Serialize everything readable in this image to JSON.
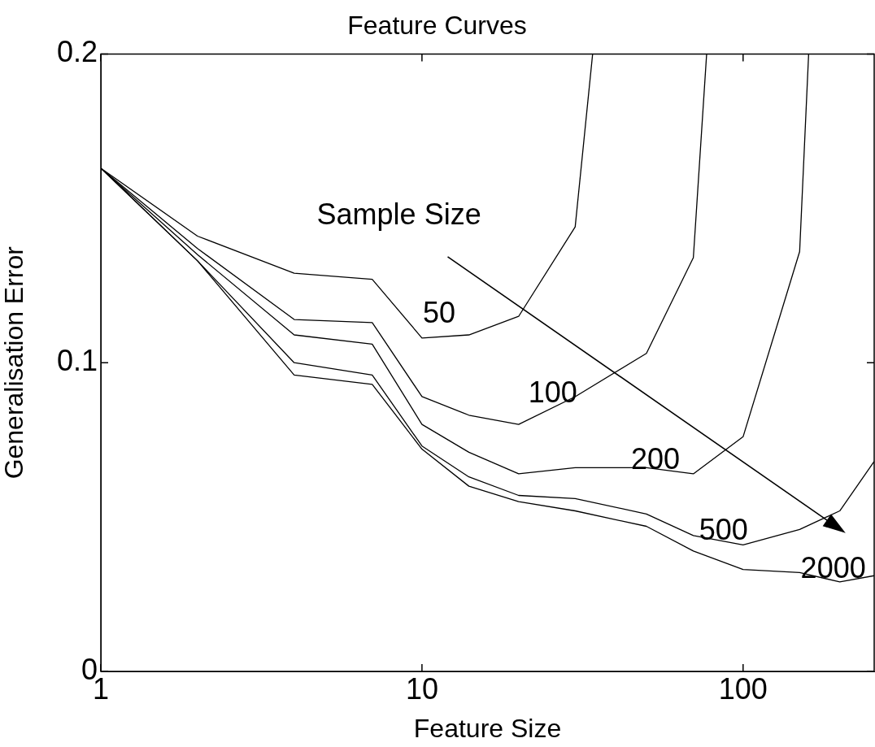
{
  "chart_data": {
    "type": "line",
    "title": "Feature Curves",
    "xlabel": "Feature Size",
    "ylabel": "Generalisation Error",
    "log": "x",
    "grid": false,
    "legend": false,
    "marker": "none",
    "line_style": "solid",
    "xlim": [
      1,
      256
    ],
    "xticks": [
      1,
      10,
      100
    ],
    "ylim": [
      0,
      0.2
    ],
    "yticks": [
      0,
      0.1,
      0.2
    ],
    "annotations": [
      "Sample Size"
    ],
    "series": [
      {
        "name": "50",
        "color": "#000000",
        "x": [
          1,
          2,
          4,
          7,
          10,
          14,
          20,
          30,
          34
        ],
        "values": [
          0.163,
          0.141,
          0.129,
          0.127,
          0.108,
          0.109,
          0.115,
          0.144,
          0.2
        ]
      },
      {
        "name": "100",
        "color": "#000000",
        "x": [
          1,
          2,
          4,
          7,
          10,
          14,
          20,
          30,
          50,
          70,
          77
        ],
        "values": [
          0.163,
          0.137,
          0.114,
          0.113,
          0.089,
          0.083,
          0.08,
          0.089,
          0.103,
          0.134,
          0.2
        ]
      },
      {
        "name": "200",
        "color": "#000000",
        "x": [
          1,
          2,
          4,
          7,
          10,
          14,
          20,
          30,
          50,
          70,
          100,
          150,
          160
        ],
        "values": [
          0.163,
          0.135,
          0.109,
          0.106,
          0.08,
          0.071,
          0.064,
          0.066,
          0.066,
          0.064,
          0.076,
          0.136,
          0.2
        ]
      },
      {
        "name": "500",
        "color": "#000000",
        "x": [
          1,
          2,
          4,
          7,
          10,
          14,
          20,
          30,
          50,
          70,
          100,
          150,
          200,
          256
        ],
        "values": [
          0.163,
          0.133,
          0.1,
          0.096,
          0.073,
          0.063,
          0.057,
          0.056,
          0.051,
          0.044,
          0.041,
          0.046,
          0.052,
          0.068
        ]
      },
      {
        "name": "2000",
        "color": "#000000",
        "x": [
          1,
          2,
          4,
          7,
          10,
          14,
          20,
          30,
          50,
          70,
          100,
          150,
          200,
          256
        ],
        "values": [
          0.163,
          0.133,
          0.096,
          0.093,
          0.072,
          0.06,
          0.055,
          0.052,
          0.047,
          0.039,
          0.033,
          0.032,
          0.029,
          0.031
        ]
      }
    ]
  }
}
